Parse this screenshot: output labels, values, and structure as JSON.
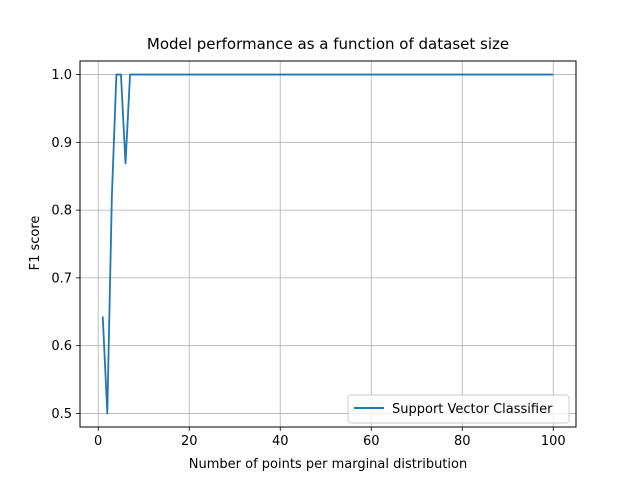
{
  "chart_data": {
    "type": "line",
    "title": "Model performance as a function of dataset size",
    "xlabel": "Number of points per marginal distribution",
    "ylabel": "F1 score",
    "xlim": [
      -4,
      105
    ],
    "ylim": [
      0.48,
      1.02
    ],
    "xticks": [
      0,
      20,
      40,
      60,
      80,
      100
    ],
    "yticks": [
      0.5,
      0.6,
      0.7,
      0.8,
      0.9,
      1.0
    ],
    "xtick_labels": [
      "0",
      "20",
      "40",
      "60",
      "80",
      "100"
    ],
    "ytick_labels": [
      "0.5",
      "0.6",
      "0.7",
      "0.8",
      "0.9",
      "1.0"
    ],
    "grid": true,
    "legend_position": "lower-right",
    "series": [
      {
        "name": "Support Vector Classifier",
        "color": "#1f77b4",
        "x": [
          1,
          2,
          3,
          4,
          5,
          6,
          7,
          8,
          9,
          10,
          15,
          20,
          30,
          40,
          50,
          60,
          70,
          80,
          90,
          100
        ],
        "y": [
          0.643,
          0.5,
          0.82,
          1.0,
          1.0,
          0.869,
          1.0,
          1.0,
          1.0,
          1.0,
          1.0,
          1.0,
          1.0,
          1.0,
          1.0,
          1.0,
          1.0,
          1.0,
          1.0,
          1.0
        ]
      }
    ]
  }
}
